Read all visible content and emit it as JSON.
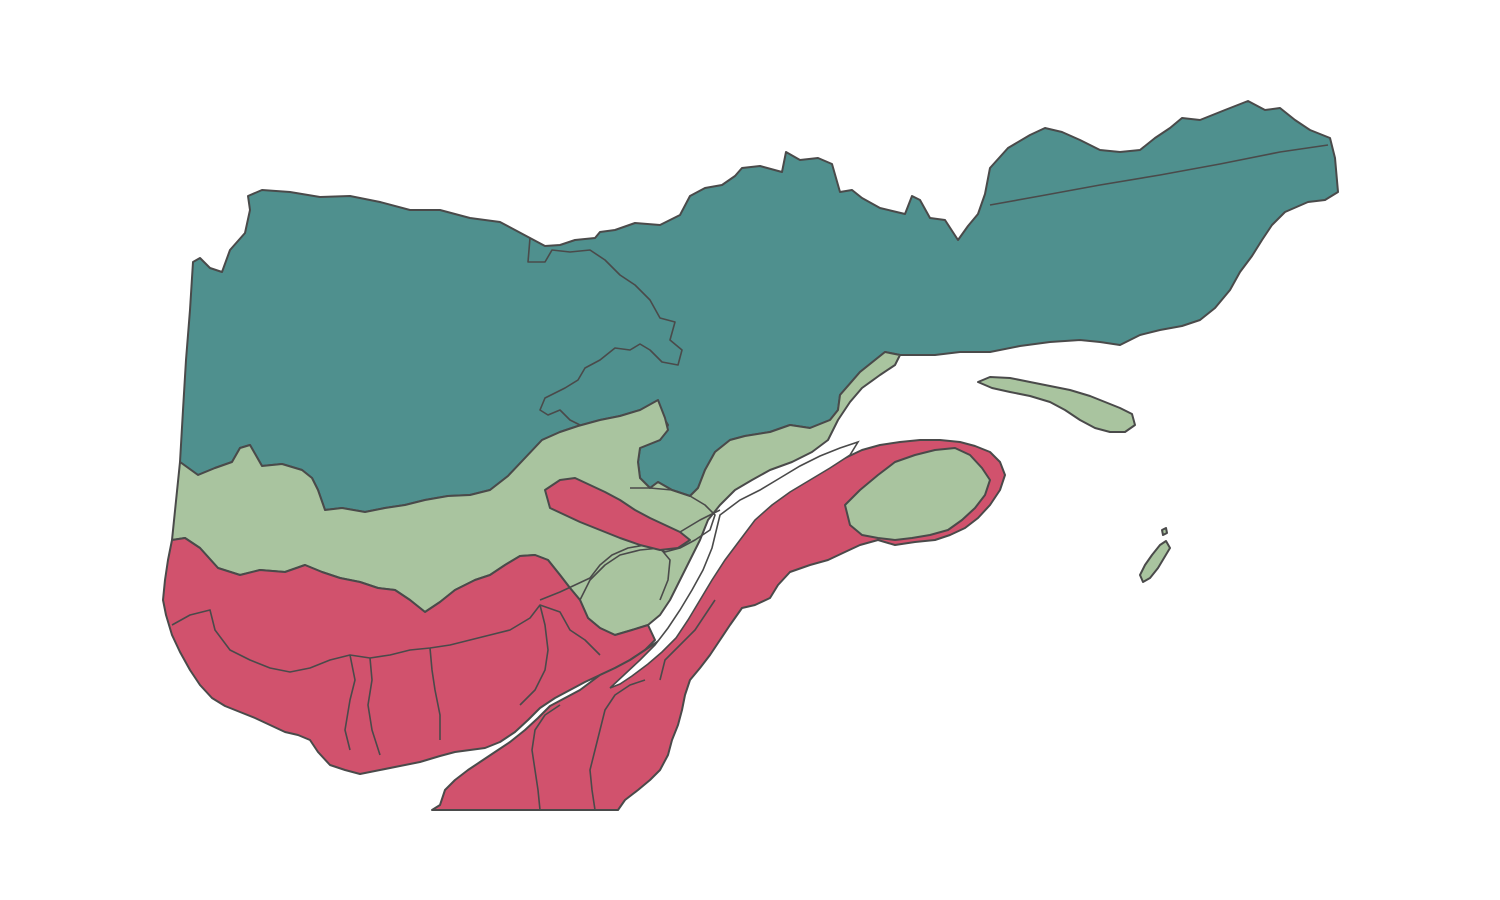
{
  "map": {
    "type": "choropleth",
    "colors": {
      "north": "#4f908e",
      "middle": "#a9c49f",
      "south": "#d1526d",
      "border": "#4a4a4a",
      "background": "#ffffff"
    },
    "zones": [
      {
        "id": "north",
        "color_key": "north"
      },
      {
        "id": "middle",
        "color_key": "middle"
      },
      {
        "id": "south",
        "color_key": "south"
      }
    ]
  }
}
